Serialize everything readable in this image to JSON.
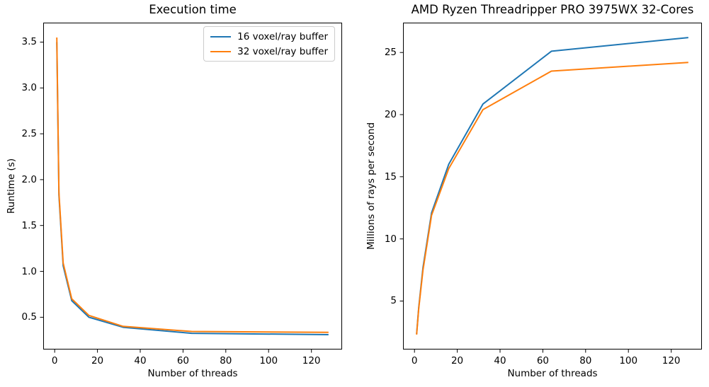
{
  "figure": {
    "background": "#ffffff",
    "text_color": "#000000",
    "spine_color": "#000000",
    "legend_border_color": "#cccccc"
  },
  "chart_data": [
    {
      "type": "line",
      "title": "Execution time",
      "xlabel": "Number of threads",
      "ylabel": "Runtime (s)",
      "x": [
        1,
        2,
        4,
        8,
        16,
        32,
        64,
        128
      ],
      "series": [
        {
          "name": "16 voxel/ray buffer",
          "color": "#1f77b4",
          "values": [
            3.5,
            1.83,
            1.06,
            0.68,
            0.5,
            0.39,
            0.325,
            0.31
          ]
        },
        {
          "name": "32 voxel/ray buffer",
          "color": "#ff7f0e",
          "values": [
            3.55,
            1.86,
            1.09,
            0.7,
            0.52,
            0.4,
            0.345,
            0.335
          ]
        }
      ],
      "xlim": [
        -5.35,
        134.35
      ],
      "ylim": [
        0.148,
        3.712
      ],
      "xticks": [
        0,
        20,
        40,
        60,
        80,
        100,
        120
      ],
      "xticklabels": [
        "0",
        "20",
        "40",
        "60",
        "80",
        "100",
        "120"
      ],
      "yticks": [
        0.5,
        1.0,
        1.5,
        2.0,
        2.5,
        3.0,
        3.5
      ],
      "yticklabels": [
        "0.5",
        "1.0",
        "1.5",
        "2.0",
        "2.5",
        "3.0",
        "3.5"
      ],
      "grid": false,
      "legend": {
        "visible": true,
        "position": "upper right"
      }
    },
    {
      "type": "line",
      "title": "AMD Ryzen Threadripper PRO 3975WX 32-Cores",
      "xlabel": "Number of threads",
      "ylabel": "Millions of rays per second",
      "x": [
        1,
        2,
        4,
        8,
        16,
        32,
        64,
        128
      ],
      "series": [
        {
          "name": "16 voxel/ray buffer",
          "color": "#1f77b4",
          "values": [
            2.35,
            4.5,
            7.7,
            12.1,
            16.0,
            20.85,
            25.1,
            26.2
          ]
        },
        {
          "name": "32 voxel/ray buffer",
          "color": "#ff7f0e",
          "values": [
            2.3,
            4.4,
            7.5,
            11.9,
            15.65,
            20.4,
            23.5,
            24.2
          ]
        }
      ],
      "xlim": [
        -5.35,
        134.35
      ],
      "ylim": [
        1.1,
        27.4
      ],
      "xticks": [
        0,
        20,
        40,
        60,
        80,
        100,
        120
      ],
      "xticklabels": [
        "0",
        "20",
        "40",
        "60",
        "80",
        "100",
        "120"
      ],
      "yticks": [
        5,
        10,
        15,
        20,
        25
      ],
      "yticklabels": [
        "5",
        "10",
        "15",
        "20",
        "25"
      ],
      "grid": false,
      "legend": {
        "visible": false,
        "position": null
      }
    }
  ]
}
